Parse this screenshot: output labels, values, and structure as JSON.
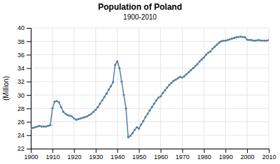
{
  "chart_data": {
    "type": "line",
    "title": "Population of Poland",
    "subtitle": "1900-2010",
    "ylabel": "(Million)",
    "xlim": [
      1900,
      2010
    ],
    "ylim": [
      22,
      40
    ],
    "xticks": [
      1900,
      1910,
      1920,
      1930,
      1940,
      1950,
      1960,
      1970,
      1980,
      1990,
      2000,
      2010
    ],
    "yticks": [
      22,
      24,
      26,
      28,
      30,
      32,
      34,
      36,
      38,
      40
    ],
    "color": "#5580a0",
    "marker": "circle",
    "grid": true,
    "x": [
      1900,
      1901,
      1902,
      1903,
      1904,
      1905,
      1906,
      1907,
      1908,
      1909,
      1910,
      1911,
      1912,
      1913,
      1914,
      1915,
      1916,
      1917,
      1918,
      1919,
      1920,
      1921,
      1922,
      1923,
      1924,
      1925,
      1926,
      1927,
      1928,
      1929,
      1930,
      1931,
      1932,
      1933,
      1934,
      1935,
      1936,
      1937,
      1938,
      1939,
      1940,
      1941,
      1942,
      1943,
      1944,
      1945,
      1946,
      1947,
      1948,
      1949,
      1950,
      1951,
      1952,
      1953,
      1954,
      1955,
      1956,
      1957,
      1958,
      1959,
      1960,
      1961,
      1962,
      1963,
      1964,
      1965,
      1966,
      1967,
      1968,
      1969,
      1970,
      1971,
      1972,
      1973,
      1974,
      1975,
      1976,
      1977,
      1978,
      1979,
      1980,
      1981,
      1982,
      1983,
      1984,
      1985,
      1986,
      1987,
      1988,
      1989,
      1990,
      1991,
      1992,
      1993,
      1994,
      1995,
      1996,
      1997,
      1998,
      1999,
      2000,
      2001,
      2002,
      2003,
      2004,
      2005,
      2006,
      2007,
      2008,
      2009,
      2010
    ],
    "values": [
      25.0,
      25.1,
      25.2,
      25.3,
      25.4,
      25.3,
      25.3,
      25.3,
      25.4,
      25.5,
      28.0,
      29.0,
      29.1,
      28.9,
      28.2,
      27.5,
      27.2,
      27.0,
      26.9,
      26.8,
      26.5,
      26.3,
      26.4,
      26.5,
      26.6,
      26.7,
      26.8,
      27.0,
      27.2,
      27.5,
      27.8,
      28.2,
      28.7,
      29.2,
      29.7,
      30.2,
      30.8,
      31.3,
      31.9,
      34.5,
      35.0,
      34.0,
      32.0,
      30.0,
      28.0,
      23.7,
      23.9,
      24.3,
      24.8,
      25.2,
      25.0,
      25.6,
      26.1,
      26.7,
      27.2,
      27.7,
      28.2,
      28.7,
      29.2,
      29.6,
      29.8,
      30.3,
      30.7,
      31.1,
      31.5,
      31.8,
      32.1,
      32.3,
      32.5,
      32.7,
      32.6,
      32.8,
      33.1,
      33.4,
      33.7,
      34.0,
      34.3,
      34.6,
      35.0,
      35.3,
      35.6,
      36.0,
      36.3,
      36.5,
      36.9,
      37.2,
      37.5,
      37.8,
      38.0,
      38.1,
      38.1,
      38.2,
      38.3,
      38.4,
      38.5,
      38.6,
      38.65,
      38.7,
      38.65,
      38.6,
      38.25,
      38.2,
      38.2,
      38.1,
      38.1,
      38.2,
      38.15,
      38.1,
      38.1,
      38.1,
      38.2
    ]
  }
}
